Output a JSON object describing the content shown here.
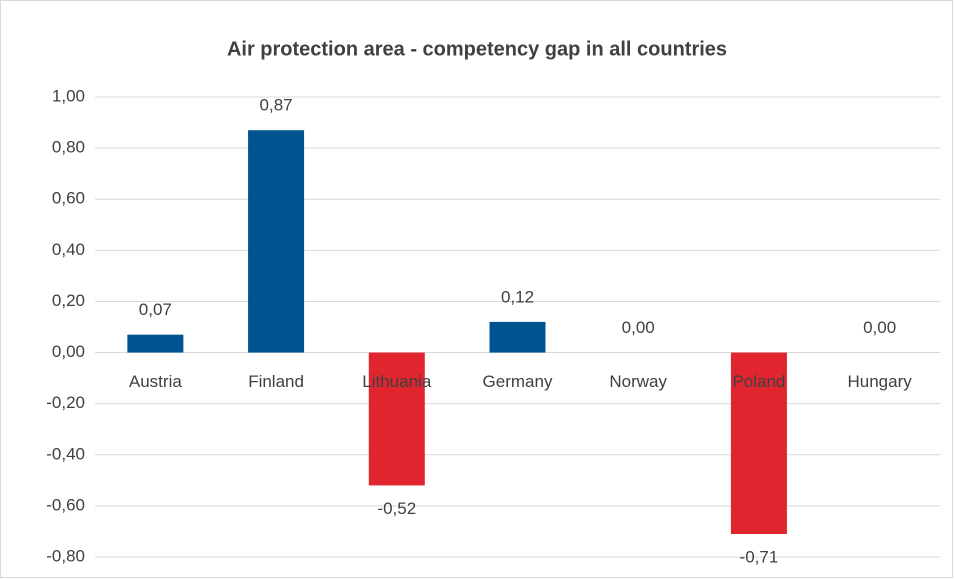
{
  "chart_data": {
    "type": "bar",
    "title": "Air protection area - competency gap in all countries",
    "categories": [
      "Austria",
      "Finland",
      "Lithuania",
      "Germany",
      "Norway",
      "Poland",
      "Hungary"
    ],
    "values": [
      0.07,
      0.87,
      -0.52,
      0.12,
      0,
      -0.71,
      0
    ],
    "value_labels": [
      "0,07",
      "0,87",
      "-0,52",
      "0,12",
      "0,00",
      "-0,71",
      "0,00"
    ],
    "colors": [
      "#00548f",
      "#00548f",
      "#e0252f",
      "#00548f",
      "#00548f",
      "#e0252f",
      "#00548f"
    ],
    "ylim": [
      -0.8,
      1.0
    ],
    "yticks": [
      {
        "value": 1.0,
        "label": "1,00"
      },
      {
        "value": 0.8,
        "label": "0,80"
      },
      {
        "value": 0.6,
        "label": "0,60"
      },
      {
        "value": 0.4,
        "label": "0,40"
      },
      {
        "value": 0.2,
        "label": "0,20"
      },
      {
        "value": 0,
        "label": "0,00"
      },
      {
        "value": -0.2,
        "label": "-0,20"
      },
      {
        "value": -0.4,
        "label": "-0,40"
      },
      {
        "value": -0.6,
        "label": "-0,60"
      },
      {
        "value": -0.8,
        "label": "-0,80"
      }
    ],
    "grid": true
  }
}
